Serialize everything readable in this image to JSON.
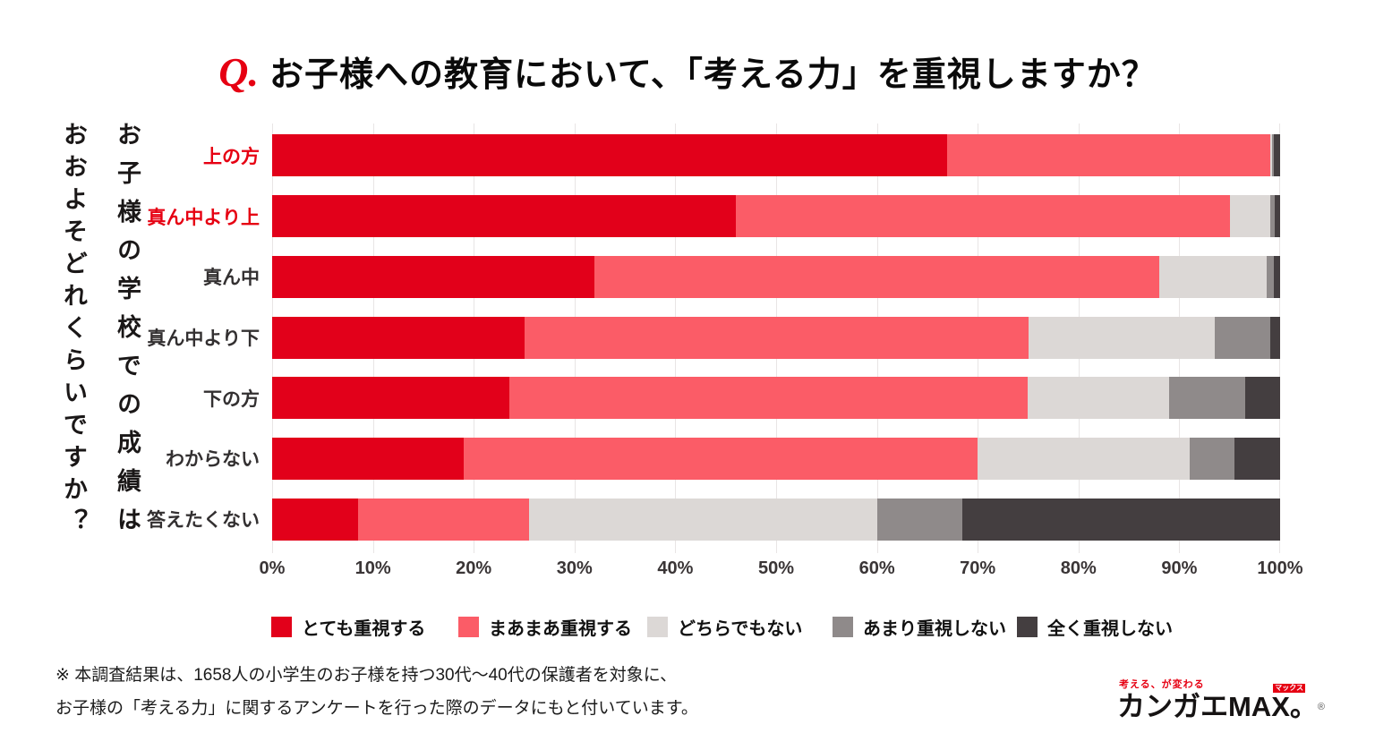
{
  "title": {
    "q": "Q.",
    "text": "お子様への教育において、「考える力」を重視しますか？"
  },
  "y_axis_question": {
    "line1": "お子様の学校での成績は",
    "line2": "おおよそどれくらいですか？"
  },
  "chart_data": {
    "type": "bar",
    "stacked": true,
    "orientation": "horizontal",
    "grid": true,
    "xlim": [
      0,
      100
    ],
    "x_ticks": [
      "0%",
      "10%",
      "20%",
      "30%",
      "40%",
      "50%",
      "60%",
      "70%",
      "80%",
      "90%",
      "100%"
    ],
    "legend_position": "bottom",
    "categories": [
      {
        "label": "上の方",
        "label_color": "#e60012"
      },
      {
        "label": "真ん中より上",
        "label_color": "#e60012"
      },
      {
        "label": "真ん中",
        "label_color": "#333031"
      },
      {
        "label": "真ん中より下",
        "label_color": "#333031"
      },
      {
        "label": "下の方",
        "label_color": "#333031"
      },
      {
        "label": "わからない",
        "label_color": "#333031"
      },
      {
        "label": "答えたくない",
        "label_color": "#333031"
      }
    ],
    "series": [
      {
        "name": "とても重視する",
        "color": "#e2001a",
        "values": [
          67,
          46,
          32,
          25,
          23.5,
          19,
          8.5
        ]
      },
      {
        "name": "まあまあ重視する",
        "color": "#fb5c67",
        "values": [
          32,
          49,
          56,
          50,
          51.5,
          51,
          17
        ]
      },
      {
        "name": "どちらでもない",
        "color": "#dcd8d6",
        "values": [
          0.2,
          4,
          10.7,
          18.5,
          14,
          21,
          34.5
        ]
      },
      {
        "name": "あまり重視しない",
        "color": "#8f8a8a",
        "values": [
          0.2,
          0.5,
          0.7,
          5.5,
          7.5,
          4.5,
          8.5
        ]
      },
      {
        "name": "全く重視しない",
        "color": "#443e40",
        "values": [
          0.6,
          0.5,
          0.6,
          1,
          3.5,
          4.5,
          31.5
        ]
      }
    ]
  },
  "footnote": {
    "line1": "※ 本調査結果は、1658人の小学生のお子様を持つ30代〜40代の保護者を対象に、",
    "line2": "お子様の「考える力」に関するアンケートを行った際のデータにもと付いています。"
  },
  "logo": {
    "tagline": "考える、が変わる",
    "brand_prefix": "カンガエMA",
    "brand_x": "X",
    "x_badge": "マックス",
    "brand_suffix": "。",
    "registered": "®"
  }
}
